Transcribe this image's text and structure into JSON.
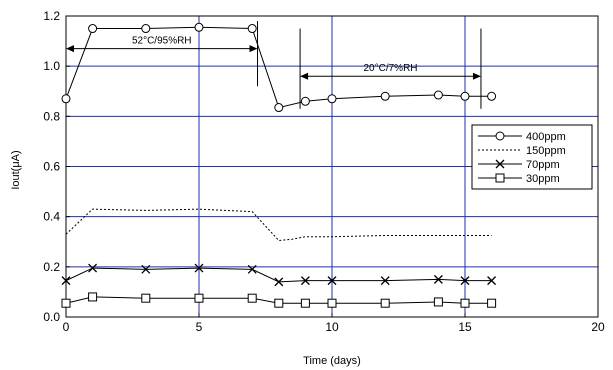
{
  "chart_data": {
    "type": "line",
    "xlabel": "Time (days)",
    "ylabel": "Iout(μA)",
    "xlim": [
      0,
      20
    ],
    "ylim": [
      0.0,
      1.2
    ],
    "x_ticks": [
      "0",
      "5",
      "10",
      "15",
      "20"
    ],
    "y_ticks": [
      "0.0",
      "0.2",
      "0.4",
      "0.6",
      "0.8",
      "1.0",
      "1.2"
    ],
    "grid": true,
    "legend_position": "right",
    "series": [
      {
        "name": "400ppm",
        "marker": "circle",
        "line": "solid",
        "x": [
          0,
          1,
          3,
          5,
          7,
          8,
          9,
          10,
          12,
          14,
          15,
          16
        ],
        "y": [
          0.87,
          1.15,
          1.15,
          1.155,
          1.15,
          0.835,
          0.86,
          0.87,
          0.88,
          0.885,
          0.88,
          0.88
        ]
      },
      {
        "name": "150ppm",
        "marker": "none",
        "line": "dotted",
        "x": [
          0,
          0.5,
          1,
          3,
          5,
          7,
          8,
          8.5,
          9,
          10,
          12,
          14,
          15,
          16
        ],
        "y": [
          0.33,
          0.38,
          0.43,
          0.425,
          0.43,
          0.42,
          0.305,
          0.31,
          0.32,
          0.32,
          0.325,
          0.325,
          0.325,
          0.325
        ]
      },
      {
        "name": "70ppm",
        "marker": "x",
        "line": "solid",
        "x": [
          0,
          1,
          3,
          5,
          7,
          8,
          9,
          10,
          12,
          14,
          15,
          16
        ],
        "y": [
          0.145,
          0.195,
          0.19,
          0.195,
          0.19,
          0.14,
          0.145,
          0.145,
          0.145,
          0.15,
          0.145,
          0.145
        ]
      },
      {
        "name": "30ppm",
        "marker": "square",
        "line": "solid",
        "x": [
          0,
          1,
          3,
          5,
          7,
          8,
          9,
          10,
          12,
          14,
          15,
          16
        ],
        "y": [
          0.055,
          0.08,
          0.075,
          0.075,
          0.075,
          0.055,
          0.055,
          0.055,
          0.055,
          0.06,
          0.055,
          0.055
        ]
      }
    ],
    "annotations": [
      {
        "text": "52°C/95%RH",
        "x_from": 0,
        "x_to": 7.2,
        "y": 1.07
      },
      {
        "text": "20°C/7%RH",
        "x_from": 8.8,
        "x_to": 15.6,
        "y": 0.96
      }
    ],
    "phase_lines_x": [
      7.2,
      8.8,
      15.6
    ],
    "colors": {
      "grid": "#1f2fb5",
      "data": "#000000",
      "frame": "#000000"
    }
  }
}
